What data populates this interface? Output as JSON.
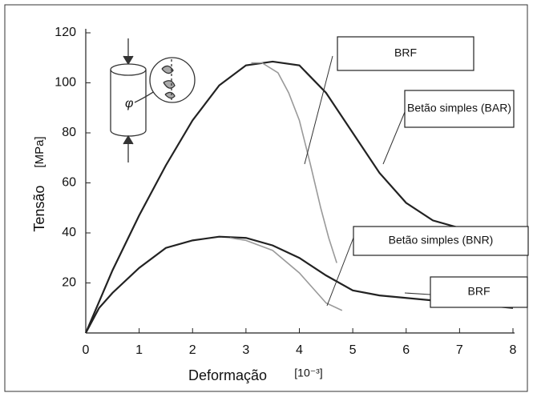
{
  "chart_data": {
    "type": "line",
    "xlabel": "Deformação",
    "xunit": "[10⁻³]",
    "ylabel": "Tensão",
    "yunit": "[MPa]",
    "xlim": [
      0,
      8
    ],
    "xticks": [
      0,
      1,
      2,
      3,
      4,
      5,
      6,
      7,
      8
    ],
    "ylim": [
      0,
      120
    ],
    "yticks": [
      20,
      40,
      60,
      80,
      100,
      120
    ],
    "series": [
      {
        "name": "BRF",
        "color": "#222222",
        "x": [
          0,
          0.5,
          1,
          1.5,
          2,
          2.5,
          3,
          3.5,
          4,
          4.5,
          5,
          5.5,
          6,
          6.5,
          7,
          7.2
        ],
        "values": [
          0,
          25,
          47,
          67,
          85,
          99,
          107,
          108.5,
          107,
          96,
          80,
          64,
          52,
          45,
          42,
          41
        ]
      },
      {
        "name": "Betão simples (BAR)",
        "color": "#9a9a9a",
        "x": [
          3.1,
          3.3,
          3.6,
          3.8,
          4,
          4.2,
          4.4,
          4.55,
          4.7
        ],
        "values": [
          108,
          108,
          104,
          96,
          85,
          68,
          50,
          38,
          28
        ]
      },
      {
        "name": "BRF",
        "color": "#222222",
        "x": [
          0,
          0.25,
          0.5,
          1,
          1.5,
          2,
          2.5,
          3,
          3.5,
          4,
          4.5,
          5,
          5.5,
          6,
          6.5,
          7,
          8
        ],
        "values": [
          0,
          10,
          16,
          26,
          34,
          37,
          38.5,
          38,
          35,
          30,
          23,
          17,
          15,
          14,
          13,
          12,
          10
        ]
      },
      {
        "name": "Betão simples (BNR)",
        "color": "#9a9a9a",
        "x": [
          2.7,
          3,
          3.5,
          4,
          4.5,
          4.8
        ],
        "values": [
          38,
          37,
          33,
          24,
          12,
          9
        ]
      }
    ]
  }
}
